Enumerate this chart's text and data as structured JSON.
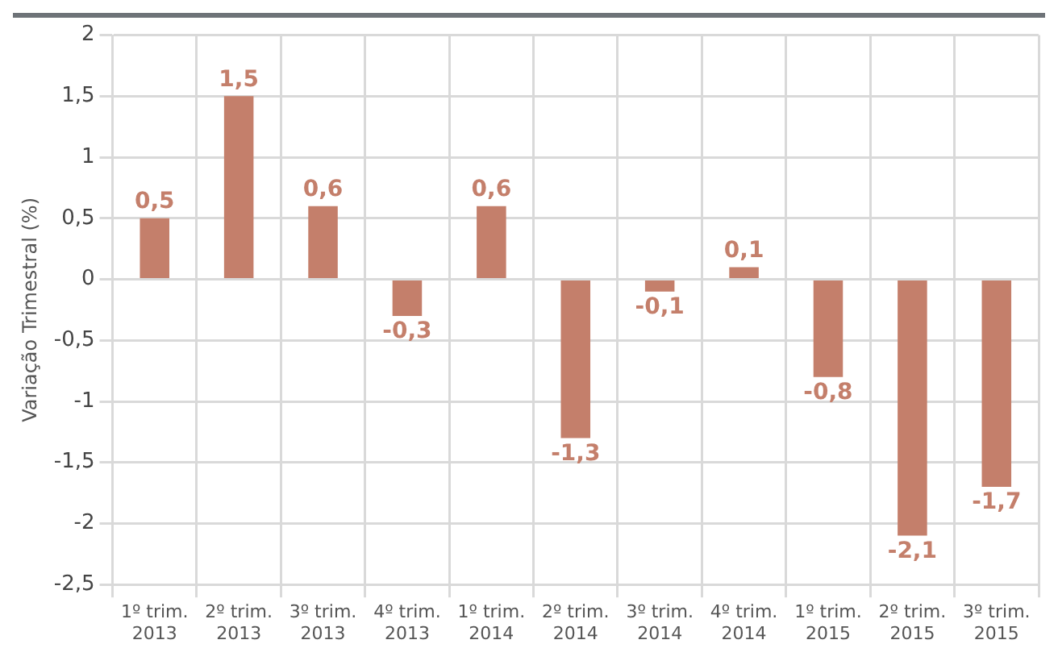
{
  "chart_data": {
    "type": "bar",
    "ylabel": "Variação Trimestral (%)",
    "categories": [
      "1º trim. 2013",
      "2º trim. 2013",
      "3º trim. 2013",
      "4º trim. 2013",
      "1º trim. 2014",
      "2º trim. 2014",
      "3º trim. 2014",
      "4º trim. 2014",
      "1º trim. 2015",
      "2º trim. 2015",
      "3º trim. 2015"
    ],
    "values": [
      0.5,
      1.5,
      0.6,
      -0.3,
      0.6,
      -1.3,
      -0.1,
      0.1,
      -0.8,
      -2.1,
      -1.7
    ],
    "value_labels": [
      "0,5",
      "1,5",
      "0,6",
      "-0,3",
      "0,6",
      "-1,3",
      "-0,1",
      "0,1",
      "-0,8",
      "-2,1",
      "-1,7"
    ],
    "color": "#c47f6b",
    "ylim": [
      -2.5,
      2
    ],
    "yticks": [
      {
        "value": -2.5,
        "label": "-2,5"
      },
      {
        "value": -2,
        "label": "-2"
      },
      {
        "value": -1.5,
        "label": "-1,5"
      },
      {
        "value": -1,
        "label": "-1"
      },
      {
        "value": -0.5,
        "label": "-0,5"
      },
      {
        "value": 0,
        "label": "0"
      },
      {
        "value": 0.5,
        "label": "0,5"
      },
      {
        "value": 1,
        "label": "1"
      },
      {
        "value": 1.5,
        "label": "1,5"
      },
      {
        "value": 2,
        "label": "2"
      }
    ],
    "grid": true,
    "legend": false
  }
}
